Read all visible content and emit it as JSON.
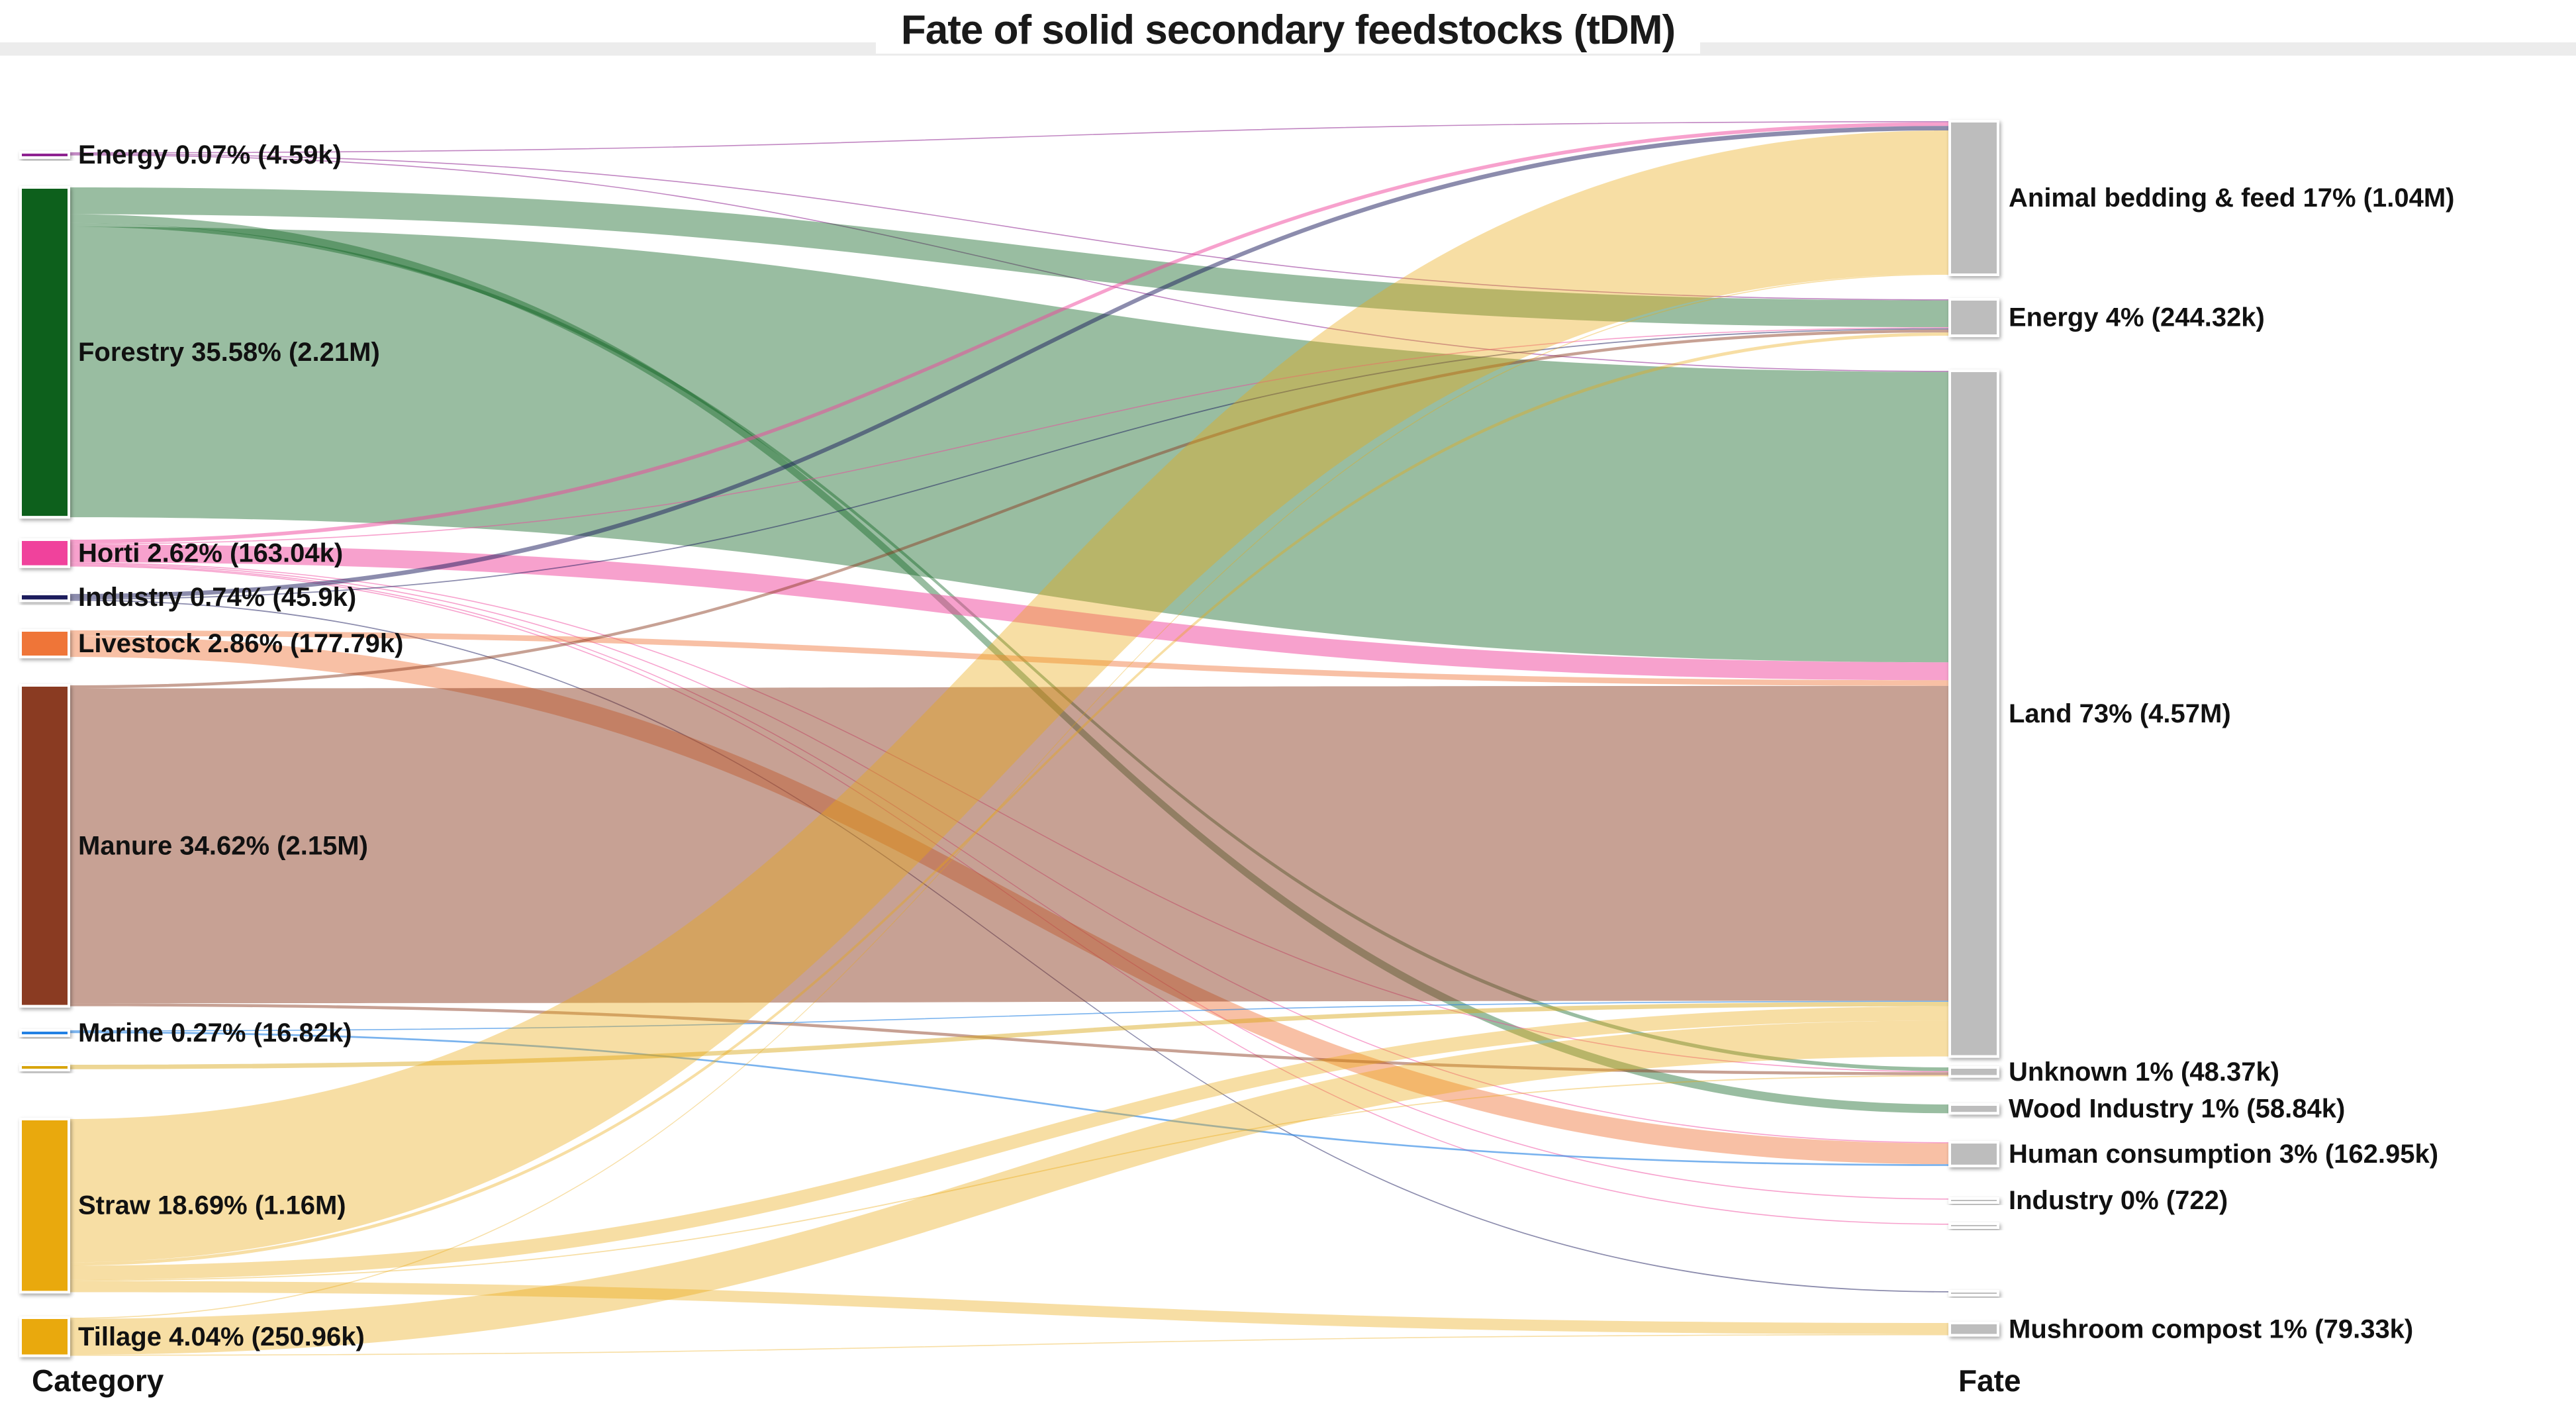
{
  "chart_data": {
    "type": "sankey",
    "title": "Fate of solid secondary feedstocks (tDM)",
    "unit": "tDM",
    "column_labels": {
      "left": "Category",
      "right": "Fate"
    },
    "colors": {
      "target_node_gray": "#BDBDBD",
      "label_text": "#111111",
      "title_text": "#1a1a1a"
    },
    "sources": [
      {
        "id": "energy",
        "label": "Energy 0.07% (4.59k)",
        "value_k": 4.59,
        "color": "#8E2290"
      },
      {
        "id": "forestry",
        "label": "Forestry 35.58% (2.21M)",
        "value_k": 2210,
        "color": "#0B611F"
      },
      {
        "id": "horti",
        "label": "Horti 2.62% (163.04k)",
        "value_k": 163.04,
        "color": "#F0439C"
      },
      {
        "id": "industry",
        "label": "Industry 0.74% (45.9k)",
        "value_k": 45.9,
        "color": "#1A1A5C"
      },
      {
        "id": "livestock",
        "label": "Livestock 2.86% (177.79k)",
        "value_k": 177.79,
        "color": "#EF7438"
      },
      {
        "id": "manure",
        "label": "Manure 34.62% (2.15M)",
        "value_k": 2150,
        "color": "#8A3B20"
      },
      {
        "id": "marine",
        "label": "Marine 0.27% (16.82k)",
        "value_k": 16.82,
        "color": "#2280E3"
      },
      {
        "id": "other_left",
        "label": "",
        "value_k": 30,
        "color": "#D8A511"
      },
      {
        "id": "straw",
        "label": "Straw 18.69% (1.16M)",
        "value_k": 1160,
        "color": "#E9A90F"
      },
      {
        "id": "tillage",
        "label": "Tillage 4.04% (250.96k)",
        "value_k": 250.96,
        "color": "#E9A90F"
      }
    ],
    "targets": [
      {
        "id": "animal_bedding",
        "label": "Animal bedding & feed 17% (1.04M)",
        "value_k": 1040
      },
      {
        "id": "energy_fate",
        "label": "Energy 4% (244.32k)",
        "value_k": 244.32
      },
      {
        "id": "land",
        "label": "Land 73% (4.57M)",
        "value_k": 4570
      },
      {
        "id": "unknown",
        "label": "Unknown 1% (48.37k)",
        "value_k": 48.37
      },
      {
        "id": "wood_industry",
        "label": "Wood Industry 1% (58.84k)",
        "value_k": 58.84
      },
      {
        "id": "human_consumption",
        "label": "Human consumption 3% (162.95k)",
        "value_k": 162.95
      },
      {
        "id": "industry_fate",
        "label": "Industry 0% (722)",
        "value_k": 0.722
      },
      {
        "id": "other_right_1",
        "label": "",
        "value_k": 3
      },
      {
        "id": "other_right_2",
        "label": "",
        "value_k": 7.9
      },
      {
        "id": "mushroom_compost",
        "label": "Mushroom compost 1% (79.33k)",
        "value_k": 79.33
      }
    ],
    "links_estimated": true,
    "links": [
      {
        "source": "energy",
        "target": "animal_bedding",
        "value_k": 2.0
      },
      {
        "source": "energy",
        "target": "energy_fate",
        "value_k": 1.59
      },
      {
        "source": "energy",
        "target": "land",
        "value_k": 1.0
      },
      {
        "source": "forestry",
        "target": "energy_fate",
        "value_k": 180
      },
      {
        "source": "forestry",
        "target": "wood_industry",
        "value_k": 58.84
      },
      {
        "source": "forestry",
        "target": "unknown",
        "value_k": 25
      },
      {
        "source": "forestry",
        "target": "land",
        "value_k": 1946.16
      },
      {
        "source": "horti",
        "target": "animal_bedding",
        "value_k": 25
      },
      {
        "source": "horti",
        "target": "energy_fate",
        "value_k": 5
      },
      {
        "source": "horti",
        "target": "land",
        "value_k": 120
      },
      {
        "source": "horti",
        "target": "unknown",
        "value_k": 4.32
      },
      {
        "source": "horti",
        "target": "human_consumption",
        "value_k": 5
      },
      {
        "source": "horti",
        "target": "industry_fate",
        "value_k": 0.72
      },
      {
        "source": "horti",
        "target": "other_right_1",
        "value_k": 3
      },
      {
        "source": "industry",
        "target": "animal_bedding",
        "value_k": 30
      },
      {
        "source": "industry",
        "target": "energy_fate",
        "value_k": 8
      },
      {
        "source": "industry",
        "target": "other_right_2",
        "value_k": 7.9
      },
      {
        "source": "livestock",
        "target": "land",
        "value_k": 37.79
      },
      {
        "source": "livestock",
        "target": "human_consumption",
        "value_k": 140
      },
      {
        "source": "manure",
        "target": "energy_fate",
        "value_k": 20
      },
      {
        "source": "manure",
        "target": "land",
        "value_k": 2110
      },
      {
        "source": "manure",
        "target": "unknown",
        "value_k": 20
      },
      {
        "source": "marine",
        "target": "land",
        "value_k": 4.82
      },
      {
        "source": "marine",
        "target": "human_consumption",
        "value_k": 12
      },
      {
        "source": "other_left",
        "target": "land",
        "value_k": 30
      },
      {
        "source": "straw",
        "target": "animal_bedding",
        "value_k": 960
      },
      {
        "source": "straw",
        "target": "energy_fate",
        "value_k": 22
      },
      {
        "source": "straw",
        "target": "land",
        "value_k": 95
      },
      {
        "source": "straw",
        "target": "unknown",
        "value_k": 8
      },
      {
        "source": "straw",
        "target": "mushroom_compost",
        "value_k": 75
      },
      {
        "source": "tillage",
        "target": "animal_bedding",
        "value_k": 5.67
      },
      {
        "source": "tillage",
        "target": "land",
        "value_k": 240.96
      },
      {
        "source": "tillage",
        "target": "mushroom_compost",
        "value_k": 4.33
      }
    ]
  }
}
